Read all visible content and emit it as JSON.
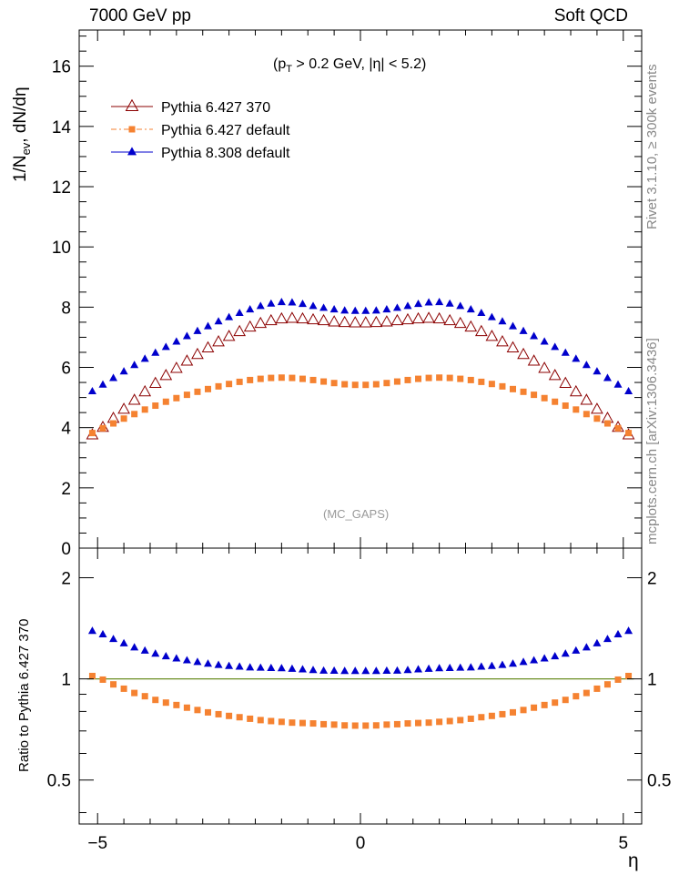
{
  "header": {
    "left": "7000 GeV pp",
    "right": "Soft QCD"
  },
  "cuts_label": {
    "main": "(p",
    "sub": "T",
    "rest": " > 0.2 GeV, |η| < 5.2)"
  },
  "analysis_tag": "(MC_GAPS)",
  "side_labels": {
    "top": "Rivet 3.1.10, ≥ 300k events",
    "bottom": "mcplots.cern.ch [arXiv:1306.3436]"
  },
  "colors": {
    "p6_370": "#8b0000",
    "p6_default": "#f58231",
    "p8_default": "#0000cc",
    "ref_line": "#6b8e23"
  },
  "chart_data": [
    {
      "type": "scatter",
      "ylabel": {
        "main": "1/N",
        "sub": "ev",
        "rest": ", dN/dη"
      },
      "xlim": [
        -5.35,
        5.35
      ],
      "ylim": [
        0,
        17.2
      ],
      "yticks": [
        0,
        2,
        4,
        6,
        8,
        10,
        12,
        14,
        16
      ],
      "legend_placement": "top-left",
      "series": [
        {
          "name": "Pythia 6.427 370",
          "marker": "open-triangle",
          "color": "#8b0000",
          "line": "solid",
          "x": [
            -5.1,
            -4.9,
            -4.7,
            -4.5,
            -4.3,
            -4.1,
            -3.9,
            -3.7,
            -3.5,
            -3.3,
            -3.1,
            -2.9,
            -2.7,
            -2.5,
            -2.3,
            -2.1,
            -1.9,
            -1.7,
            -1.5,
            -1.3,
            -1.1,
            -0.9,
            -0.7,
            -0.5,
            -0.3,
            -0.1,
            0.1,
            0.3,
            0.5,
            0.7,
            0.9,
            1.1,
            1.3,
            1.5,
            1.7,
            1.9,
            2.1,
            2.3,
            2.5,
            2.7,
            2.9,
            3.1,
            3.3,
            3.5,
            3.7,
            3.9,
            4.1,
            4.3,
            4.5,
            4.7,
            4.9,
            5.1
          ],
          "y": [
            3.75,
            4.0,
            4.3,
            4.6,
            4.9,
            5.18,
            5.46,
            5.72,
            5.96,
            6.2,
            6.42,
            6.64,
            6.84,
            7.02,
            7.18,
            7.33,
            7.45,
            7.54,
            7.6,
            7.62,
            7.6,
            7.57,
            7.54,
            7.5,
            7.48,
            7.47,
            7.47,
            7.48,
            7.5,
            7.54,
            7.57,
            7.6,
            7.62,
            7.6,
            7.54,
            7.45,
            7.33,
            7.18,
            7.02,
            6.84,
            6.64,
            6.42,
            6.2,
            5.96,
            5.72,
            5.46,
            5.18,
            4.9,
            4.6,
            4.3,
            4.0,
            3.75
          ]
        },
        {
          "name": "Pythia 6.427 default",
          "marker": "filled-square",
          "color": "#f58231",
          "line": "dash-dot",
          "x": [
            -5.1,
            -4.9,
            -4.7,
            -4.5,
            -4.3,
            -4.1,
            -3.9,
            -3.7,
            -3.5,
            -3.3,
            -3.1,
            -2.9,
            -2.7,
            -2.5,
            -2.3,
            -2.1,
            -1.9,
            -1.7,
            -1.5,
            -1.3,
            -1.1,
            -0.9,
            -0.7,
            -0.5,
            -0.3,
            -0.1,
            0.1,
            0.3,
            0.5,
            0.7,
            0.9,
            1.1,
            1.3,
            1.5,
            1.7,
            1.9,
            2.1,
            2.3,
            2.5,
            2.7,
            2.9,
            3.1,
            3.3,
            3.5,
            3.7,
            3.9,
            4.1,
            4.3,
            4.5,
            4.7,
            4.9,
            5.1
          ],
          "y": [
            3.82,
            3.98,
            4.14,
            4.3,
            4.45,
            4.6,
            4.73,
            4.86,
            4.98,
            5.09,
            5.19,
            5.28,
            5.37,
            5.45,
            5.52,
            5.58,
            5.62,
            5.65,
            5.66,
            5.65,
            5.62,
            5.58,
            5.53,
            5.48,
            5.44,
            5.42,
            5.42,
            5.44,
            5.48,
            5.53,
            5.58,
            5.62,
            5.65,
            5.66,
            5.65,
            5.62,
            5.58,
            5.52,
            5.45,
            5.37,
            5.28,
            5.19,
            5.09,
            4.98,
            4.86,
            4.73,
            4.6,
            4.45,
            4.3,
            4.14,
            3.98,
            3.82
          ]
        },
        {
          "name": "Pythia 8.308 default",
          "marker": "filled-triangle",
          "color": "#0000cc",
          "line": "solid",
          "x": [
            -5.1,
            -4.9,
            -4.7,
            -4.5,
            -4.3,
            -4.1,
            -3.9,
            -3.7,
            -3.5,
            -3.3,
            -3.1,
            -2.9,
            -2.7,
            -2.5,
            -2.3,
            -2.1,
            -1.9,
            -1.7,
            -1.5,
            -1.3,
            -1.1,
            -0.9,
            -0.7,
            -0.5,
            -0.3,
            -0.1,
            0.1,
            0.3,
            0.5,
            0.7,
            0.9,
            1.1,
            1.3,
            1.5,
            1.7,
            1.9,
            2.1,
            2.3,
            2.5,
            2.7,
            2.9,
            3.1,
            3.3,
            3.5,
            3.7,
            3.9,
            4.1,
            4.3,
            4.5,
            4.7,
            4.9,
            5.1
          ],
          "y": [
            5.2,
            5.42,
            5.64,
            5.86,
            6.07,
            6.28,
            6.48,
            6.67,
            6.85,
            7.03,
            7.2,
            7.36,
            7.52,
            7.66,
            7.8,
            7.92,
            8.03,
            8.11,
            8.16,
            8.15,
            8.1,
            8.03,
            7.97,
            7.92,
            7.88,
            7.87,
            7.87,
            7.88,
            7.92,
            7.97,
            8.03,
            8.1,
            8.15,
            8.16,
            8.11,
            8.03,
            7.92,
            7.8,
            7.66,
            7.52,
            7.36,
            7.2,
            7.03,
            6.85,
            6.67,
            6.48,
            6.28,
            6.07,
            5.86,
            5.64,
            5.42,
            5.2
          ]
        }
      ]
    },
    {
      "type": "scatter",
      "ylabel": "Ratio to Pythia 6.427 370",
      "xlabel": "η",
      "xlim": [
        -5.35,
        5.35
      ],
      "xticks": [
        -5,
        0,
        5
      ],
      "ylim": [
        0.37,
        2.45
      ],
      "yscale": "log",
      "yticks": [
        0.5,
        1,
        2
      ],
      "reference_line": 1.0,
      "series": [
        {
          "name": "Pythia 6.427 default",
          "marker": "filled-square",
          "color": "#f58231",
          "x": [
            -5.1,
            -4.9,
            -4.7,
            -4.5,
            -4.3,
            -4.1,
            -3.9,
            -3.7,
            -3.5,
            -3.3,
            -3.1,
            -2.9,
            -2.7,
            -2.5,
            -2.3,
            -2.1,
            -1.9,
            -1.7,
            -1.5,
            -1.3,
            -1.1,
            -0.9,
            -0.7,
            -0.5,
            -0.3,
            -0.1,
            0.1,
            0.3,
            0.5,
            0.7,
            0.9,
            1.1,
            1.3,
            1.5,
            1.7,
            1.9,
            2.1,
            2.3,
            2.5,
            2.7,
            2.9,
            3.1,
            3.3,
            3.5,
            3.7,
            3.9,
            4.1,
            4.3,
            4.5,
            4.7,
            4.9,
            5.1
          ],
          "y": [
            1.02,
            0.995,
            0.963,
            0.935,
            0.908,
            0.888,
            0.866,
            0.85,
            0.836,
            0.821,
            0.808,
            0.795,
            0.785,
            0.776,
            0.769,
            0.761,
            0.754,
            0.749,
            0.745,
            0.741,
            0.739,
            0.737,
            0.733,
            0.731,
            0.727,
            0.726,
            0.726,
            0.727,
            0.731,
            0.733,
            0.737,
            0.739,
            0.741,
            0.745,
            0.749,
            0.754,
            0.761,
            0.769,
            0.776,
            0.785,
            0.795,
            0.808,
            0.821,
            0.836,
            0.85,
            0.866,
            0.888,
            0.908,
            0.935,
            0.963,
            0.995,
            1.02
          ]
        },
        {
          "name": "Pythia 8.308 default",
          "marker": "filled-triangle",
          "color": "#0000cc",
          "x": [
            -5.1,
            -4.9,
            -4.7,
            -4.5,
            -4.3,
            -4.1,
            -3.9,
            -3.7,
            -3.5,
            -3.3,
            -3.1,
            -2.9,
            -2.7,
            -2.5,
            -2.3,
            -2.1,
            -1.9,
            -1.7,
            -1.5,
            -1.3,
            -1.1,
            -0.9,
            -0.7,
            -0.5,
            -0.3,
            -0.1,
            0.1,
            0.3,
            0.5,
            0.7,
            0.9,
            1.1,
            1.3,
            1.5,
            1.7,
            1.9,
            2.1,
            2.3,
            2.5,
            2.7,
            2.9,
            3.1,
            3.3,
            3.5,
            3.7,
            3.9,
            4.1,
            4.3,
            4.5,
            4.7,
            4.9,
            5.1
          ],
          "y": [
            1.387,
            1.355,
            1.312,
            1.274,
            1.239,
            1.212,
            1.187,
            1.166,
            1.149,
            1.134,
            1.121,
            1.108,
            1.099,
            1.091,
            1.086,
            1.08,
            1.078,
            1.076,
            1.074,
            1.07,
            1.066,
            1.061,
            1.057,
            1.056,
            1.054,
            1.054,
            1.054,
            1.054,
            1.056,
            1.057,
            1.061,
            1.066,
            1.07,
            1.074,
            1.076,
            1.078,
            1.08,
            1.086,
            1.091,
            1.099,
            1.108,
            1.121,
            1.134,
            1.149,
            1.166,
            1.187,
            1.212,
            1.239,
            1.274,
            1.312,
            1.355,
            1.387
          ]
        }
      ]
    }
  ]
}
